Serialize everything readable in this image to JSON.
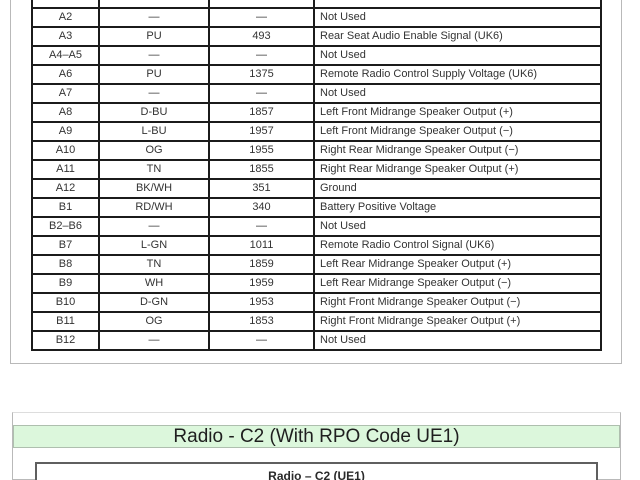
{
  "pinout_table": {
    "rows": [
      {
        "pin": "A2",
        "color": "—",
        "circuit": "—",
        "function": "Not Used"
      },
      {
        "pin": "A3",
        "color": "PU",
        "circuit": "493",
        "function": "Rear Seat Audio Enable Signal (UK6)"
      },
      {
        "pin": "A4–A5",
        "color": "—",
        "circuit": "—",
        "function": "Not Used"
      },
      {
        "pin": "A6",
        "color": "PU",
        "circuit": "1375",
        "function": "Remote Radio Control Supply Voltage (UK6)"
      },
      {
        "pin": "A7",
        "color": "—",
        "circuit": "—",
        "function": "Not Used"
      },
      {
        "pin": "A8",
        "color": "D-BU",
        "circuit": "1857",
        "function": "Left Front Midrange Speaker Output (+)"
      },
      {
        "pin": "A9",
        "color": "L-BU",
        "circuit": "1957",
        "function": "Left Front Midrange Speaker Output (−)"
      },
      {
        "pin": "A10",
        "color": "OG",
        "circuit": "1955",
        "function": "Right Rear Midrange Speaker Output (−)"
      },
      {
        "pin": "A11",
        "color": "TN",
        "circuit": "1855",
        "function": "Right Rear Midrange Speaker Output (+)"
      },
      {
        "pin": "A12",
        "color": "BK/WH",
        "circuit": "351",
        "function": "Ground"
      },
      {
        "pin": "B1",
        "color": "RD/WH",
        "circuit": "340",
        "function": "Battery Positive Voltage"
      },
      {
        "pin": "B2–B6",
        "color": "—",
        "circuit": "—",
        "function": "Not Used"
      },
      {
        "pin": "B7",
        "color": "L-GN",
        "circuit": "1011",
        "function": "Remote Radio Control Signal (UK6)"
      },
      {
        "pin": "B8",
        "color": "TN",
        "circuit": "1859",
        "function": "Left Rear Midrange Speaker Output (+)"
      },
      {
        "pin": "B9",
        "color": "WH",
        "circuit": "1959",
        "function": "Left Rear Midrange Speaker Output (−)"
      },
      {
        "pin": "B10",
        "color": "D-GN",
        "circuit": "1953",
        "function": "Right Front Midrange Speaker Output (−)"
      },
      {
        "pin": "B11",
        "color": "OG",
        "circuit": "1853",
        "function": "Right Front Midrange Speaker Output (+)"
      },
      {
        "pin": "B12",
        "color": "—",
        "circuit": "—",
        "function": "Not Used"
      }
    ]
  },
  "bottom_section": {
    "header": "Radio - C2 (With RPO Code UE1)",
    "subheader": "Radio – C2 (UE1)"
  },
  "colors": {
    "header_bg": "#dcf7dc",
    "table_border": "#1b1b1b",
    "outer_box_border": "#b9b9b9",
    "text": "#333333"
  }
}
